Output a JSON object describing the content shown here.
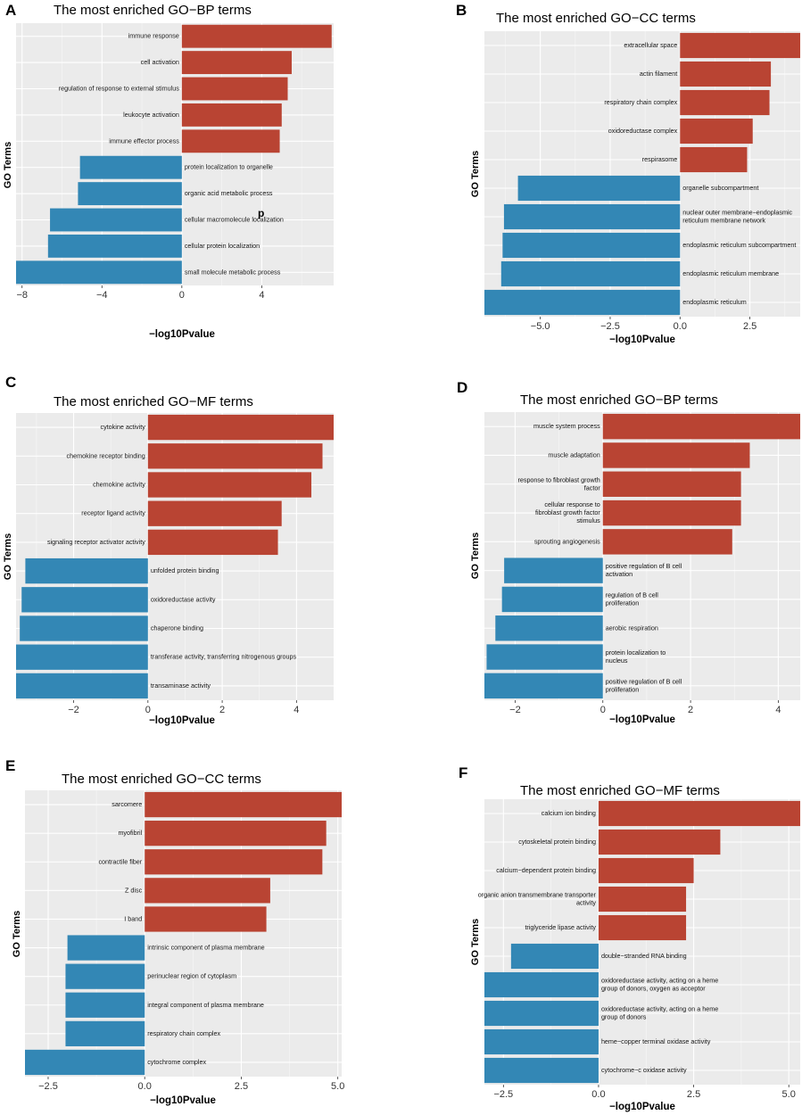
{
  "stray_glyph": "p",
  "chart_data": [
    {
      "panel": "A",
      "type": "bar",
      "orientation": "horizontal",
      "title": "The most enriched GO−BP terms",
      "xlabel": "−log10Pvalue",
      "ylabel": "GO Terms",
      "xlim": [
        -8.3,
        7.6
      ],
      "xticks": [
        -8,
        -4,
        0,
        4
      ],
      "xticklabels": [
        "−8",
        "−4",
        "0",
        "4"
      ],
      "grid": true,
      "categories": [
        "immune response",
        "cell activation",
        "regulation of response to external stimulus",
        "leukocyte activation",
        "immune effector process",
        "protein localization to organelle",
        "organic acid metabolic process",
        "cellular macromolecule localization",
        "cellular protein localization",
        "small molecule metabolic process"
      ],
      "values": [
        7.5,
        5.5,
        5.3,
        5.0,
        4.9,
        -5.1,
        -5.2,
        -6.6,
        -6.7,
        -8.3
      ],
      "colors": {
        "positive": "#b94433",
        "negative": "#3387b5"
      }
    },
    {
      "panel": "B",
      "type": "bar",
      "orientation": "horizontal",
      "title": "The most enriched GO−CC terms",
      "xlabel": "−log10Pvalue",
      "ylabel": "GO Terms",
      "xlim": [
        -7.0,
        4.3
      ],
      "xticks": [
        -5,
        -2.5,
        0,
        2.5
      ],
      "xticklabels": [
        "−5.0",
        "−2.5",
        "0.0",
        "2.5"
      ],
      "grid": true,
      "categories": [
        "extracellular space",
        "actin filament",
        "respiratory chain complex",
        "oxidoreductase complex",
        "respirasome",
        "organelle subcompartment",
        "nuclear outer membrane−endoplasmic reticulum membrane network",
        "endoplasmic reticulum subcompartment",
        "endoplasmic reticulum membrane",
        "endoplasmic reticulum"
      ],
      "values": [
        4.3,
        3.25,
        3.2,
        2.6,
        2.4,
        -5.8,
        -6.3,
        -6.35,
        -6.4,
        -7.0
      ],
      "colors": {
        "positive": "#b94433",
        "negative": "#3387b5"
      }
    },
    {
      "panel": "C",
      "type": "bar",
      "orientation": "horizontal",
      "title": "The most enriched GO−MF terms",
      "xlabel": "−log10Pvalue",
      "ylabel": "GO Terms",
      "xlim": [
        -3.55,
        5.0
      ],
      "xticks": [
        -2,
        0,
        2,
        4
      ],
      "xticklabels": [
        "−2",
        "0",
        "2",
        "4"
      ],
      "grid": true,
      "categories": [
        "cytokine activity",
        "chemokine receptor binding",
        "chemokine activity",
        "receptor ligand activity",
        "signaling receptor activator activity",
        "unfolded protein binding",
        "oxidoreductase activity",
        "chaperone binding",
        "transferase activity, transferring nitrogenous groups",
        "transaminase activity"
      ],
      "values": [
        5.0,
        4.7,
        4.4,
        3.6,
        3.5,
        -3.3,
        -3.4,
        -3.45,
        -3.55,
        -3.55
      ],
      "colors": {
        "positive": "#b94433",
        "negative": "#3387b5"
      }
    },
    {
      "panel": "D",
      "type": "bar",
      "orientation": "horizontal",
      "title": "The most enriched GO−BP terms",
      "xlabel": "−log10Pvalue",
      "ylabel": "GO Terms",
      "xlim": [
        -2.7,
        4.5
      ],
      "xticks": [
        -2,
        0,
        2,
        4
      ],
      "xticklabels": [
        "−2",
        "0",
        "2",
        "4"
      ],
      "grid": true,
      "categories": [
        "muscle system process",
        "muscle adaptation",
        "response to fibroblast growth factor",
        "cellular response to fibroblast growth factor stimulus",
        "sprouting angiogenesis",
        "positive regulation of B cell activation",
        "regulation of B cell proliferation",
        "aerobic respiration",
        "protein localization to nucleus",
        "positive regulation of B cell proliferation"
      ],
      "values": [
        4.5,
        3.35,
        3.15,
        3.15,
        2.95,
        -2.25,
        -2.3,
        -2.45,
        -2.65,
        -2.7
      ],
      "colors": {
        "positive": "#b94433",
        "negative": "#3387b5"
      }
    },
    {
      "panel": "E",
      "type": "bar",
      "orientation": "horizontal",
      "title": "The most enriched GO−CC terms",
      "xlabel": "−log10Pvalue",
      "ylabel": "GO Terms",
      "xlim": [
        -3.1,
        5.1
      ],
      "xticks": [
        -2.5,
        0,
        2.5,
        5
      ],
      "xticklabels": [
        "−2.5",
        "0.0",
        "2.5",
        "5.0"
      ],
      "grid": true,
      "categories": [
        "sarcomere",
        "myofibril",
        "contractile fiber",
        "Z disc",
        "I band",
        "intrinsic component of plasma membrane",
        "perinuclear region of cytoplasm",
        "integral component of plasma membrane",
        "respiratory chain complex",
        "cytochrome complex"
      ],
      "values": [
        5.1,
        4.7,
        4.6,
        3.25,
        3.15,
        -2.0,
        -2.05,
        -2.05,
        -2.05,
        -3.1
      ],
      "colors": {
        "positive": "#b94433",
        "negative": "#3387b5"
      }
    },
    {
      "panel": "F",
      "type": "bar",
      "orientation": "horizontal",
      "title": "The most enriched GO−MF terms",
      "xlabel": "−log10Pvalue",
      "ylabel": "GO Terms",
      "xlim": [
        -3.0,
        5.3
      ],
      "xticks": [
        -2.5,
        0,
        2.5,
        5
      ],
      "xticklabels": [
        "−2.5",
        "0.0",
        "2.5",
        "5.0"
      ],
      "grid": true,
      "categories": [
        "calcium ion binding",
        "cytoskeletal protein binding",
        "calcium−dependent protein binding",
        "organic anion transmembrane transporter activity",
        "triglyceride lipase activity",
        "double−stranded RNA binding",
        "oxidoreductase activity, acting on a heme group of donors, oxygen as acceptor",
        "oxidoreductase activity, acting on a heme group of donors",
        "heme−copper terminal oxidase activity",
        "cytochrome−c oxidase activity"
      ],
      "values": [
        5.3,
        3.2,
        2.5,
        2.3,
        2.3,
        -2.3,
        -3.0,
        -3.0,
        -3.0,
        -3.0
      ],
      "colors": {
        "positive": "#b94433",
        "negative": "#3387b5"
      }
    }
  ]
}
